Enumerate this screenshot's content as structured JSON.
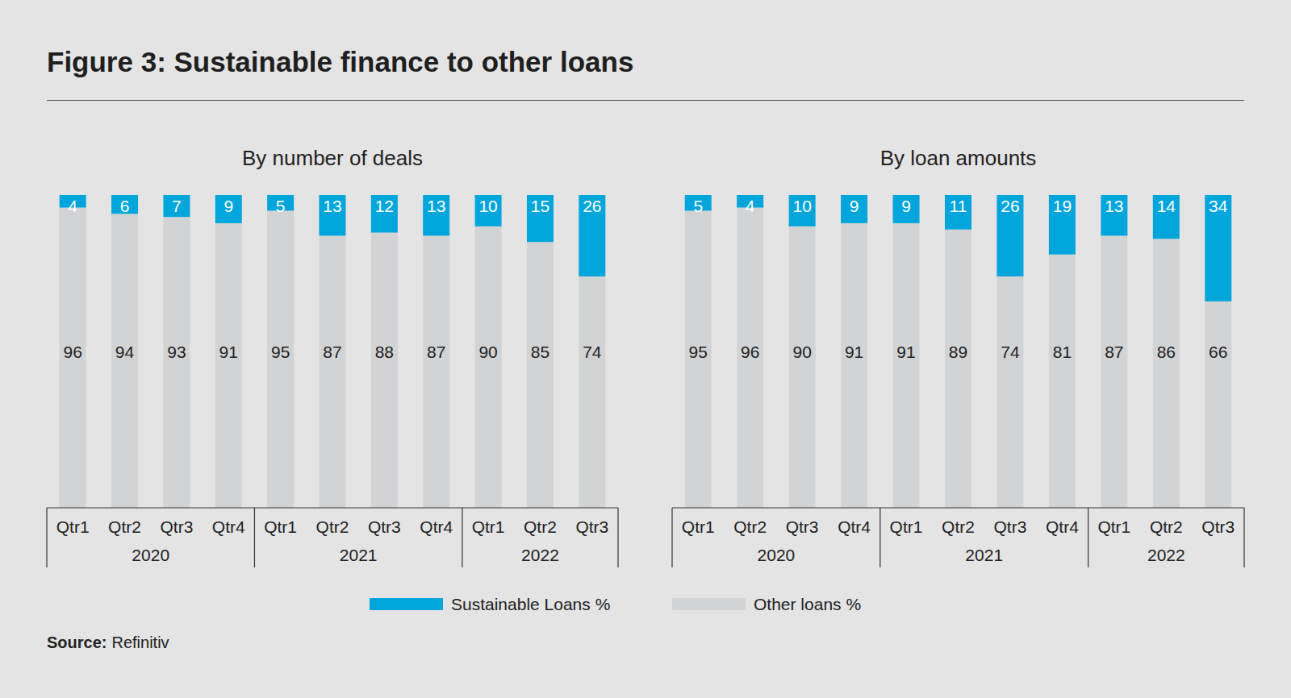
{
  "title": "Figure 3: Sustainable finance to other loans",
  "source_label": "Source:",
  "source": "Refinitiv",
  "chart_data": [
    {
      "type": "bar",
      "title": "By number of deals",
      "categories": [
        "Qtr1",
        "Qtr2",
        "Qtr3",
        "Qtr4",
        "Qtr1",
        "Qtr2",
        "Qtr3",
        "Qtr4",
        "Qtr1",
        "Qtr2",
        "Qtr3"
      ],
      "groups": [
        "2020",
        "2020",
        "2020",
        "2020",
        "2021",
        "2021",
        "2021",
        "2021",
        "2022",
        "2022",
        "2022"
      ],
      "series": [
        {
          "name": "Sustainable Loans %",
          "color": "#00a5dc",
          "values": [
            4,
            6,
            7,
            9,
            5,
            13,
            12,
            13,
            10,
            15,
            26
          ]
        },
        {
          "name": "Other loans %",
          "color": "#d2d3d5",
          "values": [
            96,
            94,
            93,
            91,
            95,
            87,
            88,
            87,
            90,
            85,
            74
          ]
        }
      ],
      "ylim": [
        0,
        100
      ],
      "stacked": true,
      "data_labels": true,
      "tick_labels": "x",
      "legend": "bottom"
    },
    {
      "type": "bar",
      "title": "By loan amounts",
      "categories": [
        "Qtr1",
        "Qtr2",
        "Qtr3",
        "Qtr4",
        "Qtr1",
        "Qtr2",
        "Qtr3",
        "Qtr4",
        "Qtr1",
        "Qtr2",
        "Qtr3"
      ],
      "groups": [
        "2020",
        "2020",
        "2020",
        "2020",
        "2021",
        "2021",
        "2021",
        "2021",
        "2022",
        "2022",
        "2022"
      ],
      "series": [
        {
          "name": "Sustainable Loans %",
          "color": "#00a5dc",
          "values": [
            5,
            4,
            10,
            9,
            9,
            11,
            26,
            19,
            13,
            14,
            34
          ]
        },
        {
          "name": "Other loans %",
          "color": "#d2d3d5",
          "values": [
            95,
            96,
            90,
            91,
            91,
            89,
            74,
            81,
            87,
            86,
            66
          ]
        }
      ],
      "ylim": [
        0,
        100
      ],
      "stacked": true,
      "data_labels": true,
      "tick_labels": "x",
      "legend": "none"
    }
  ]
}
